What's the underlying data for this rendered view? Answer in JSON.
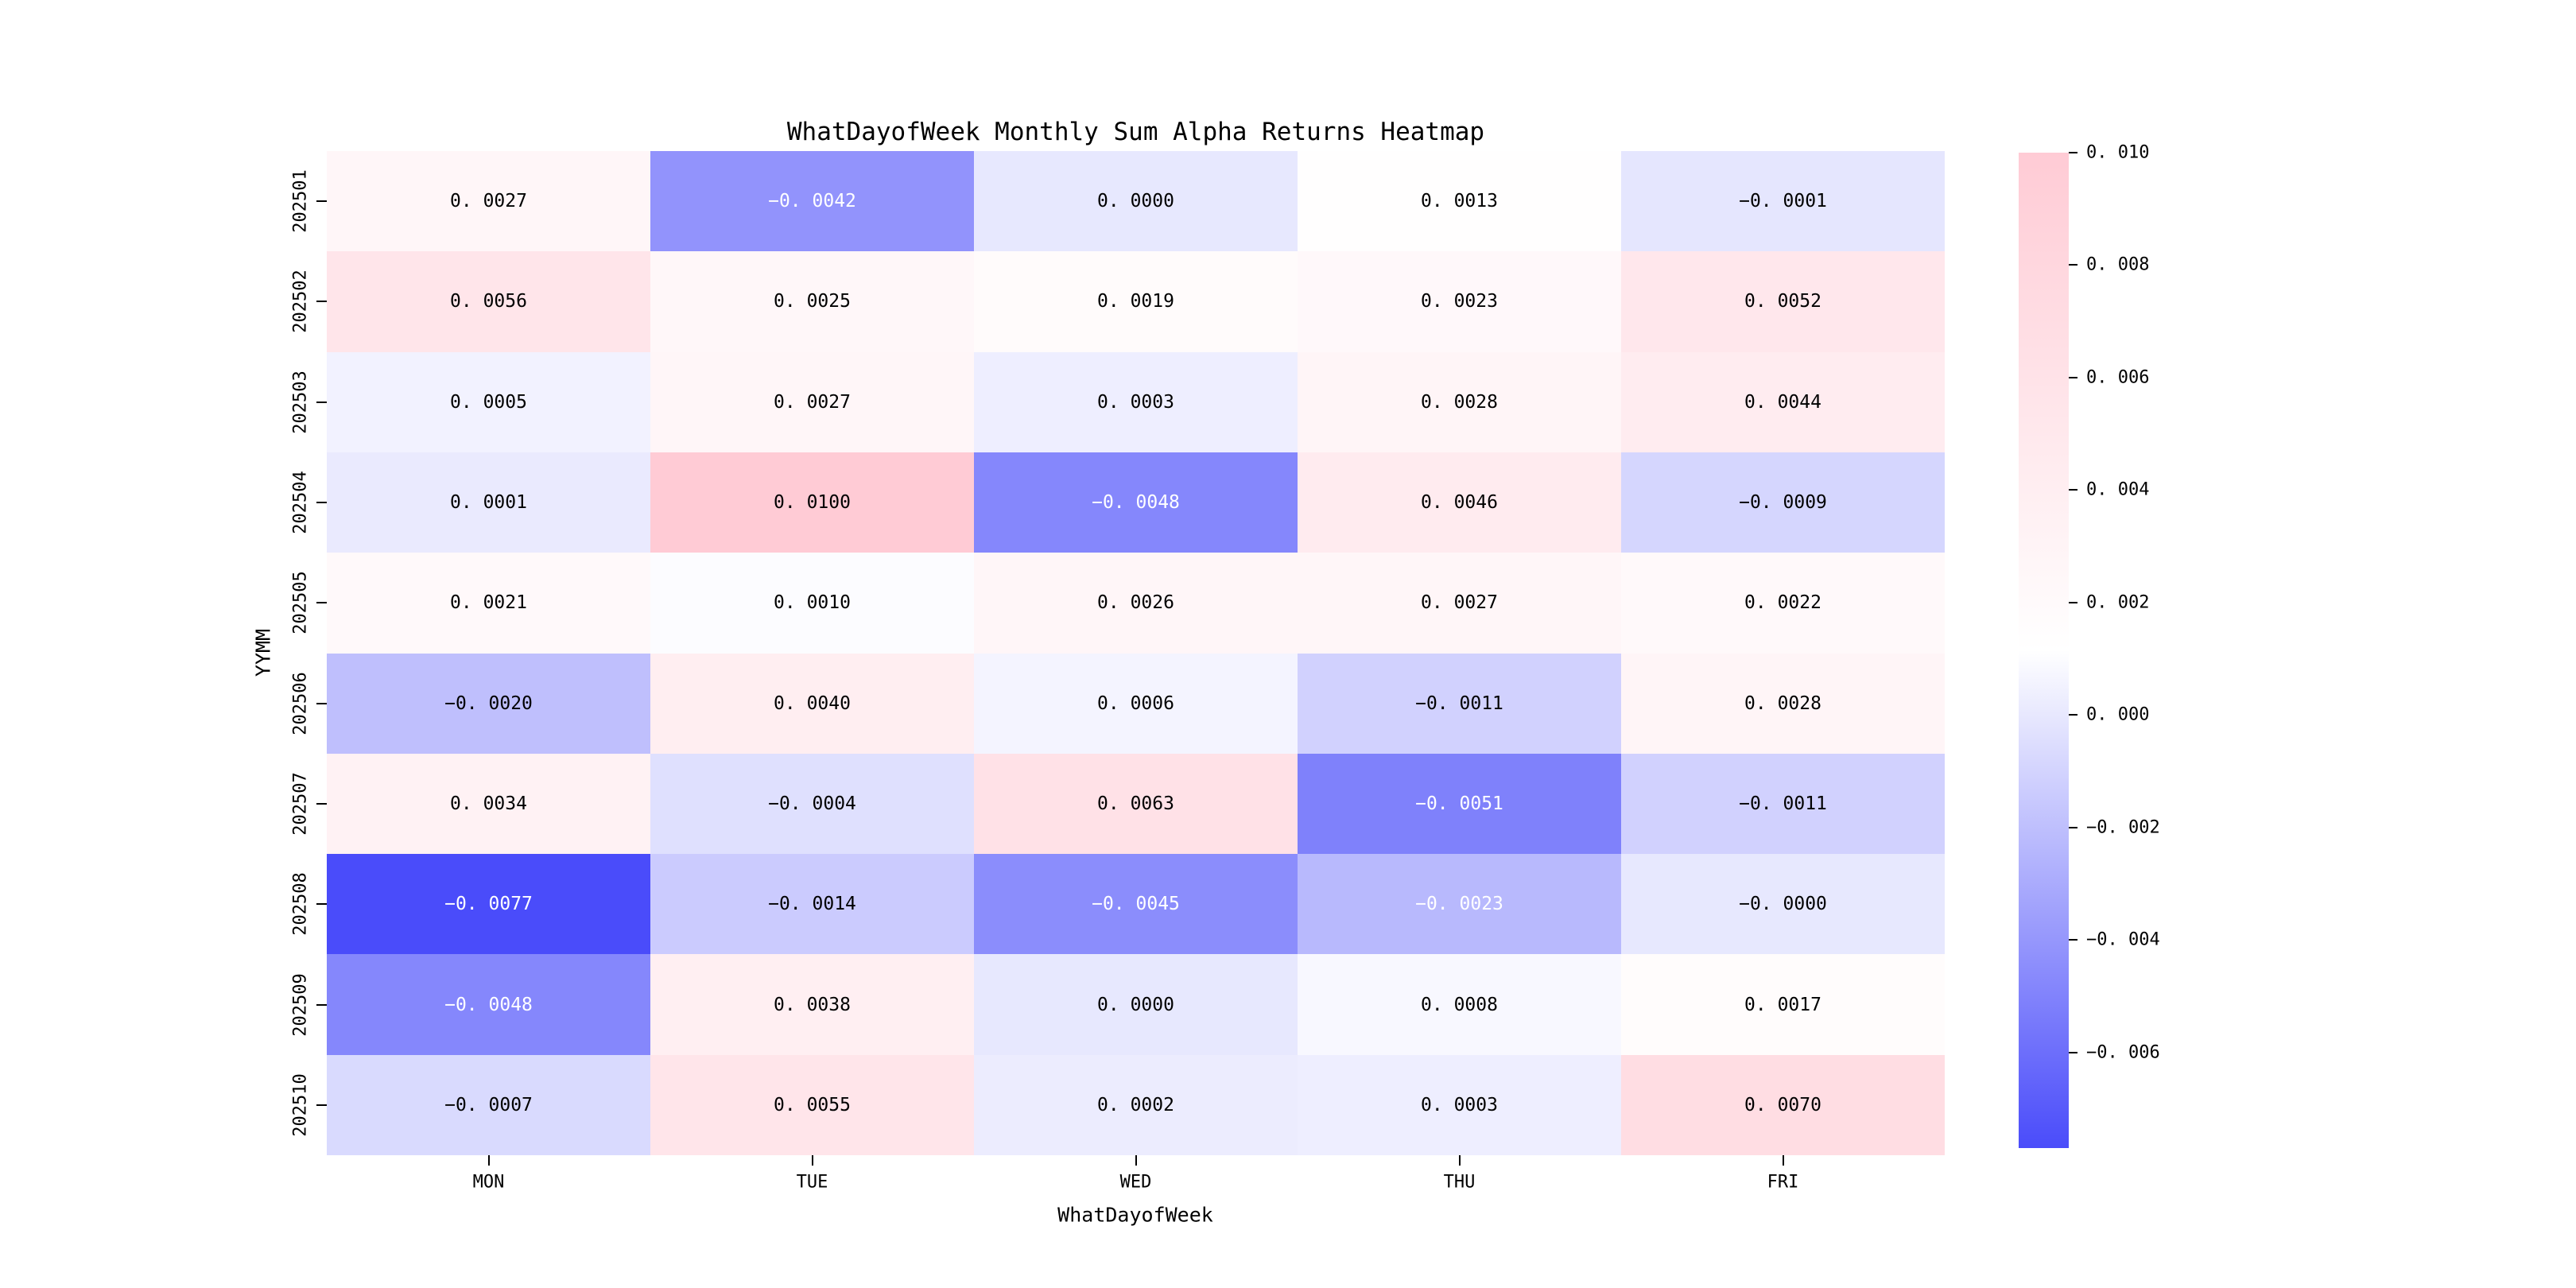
{
  "chart_data": {
    "type": "heatmap",
    "title": "WhatDayofWeek Monthly Sum Alpha Returns Heatmap",
    "xlabel": "WhatDayofWeek",
    "ylabel": "YYMM",
    "columns": [
      "MON",
      "TUE",
      "WED",
      "THU",
      "FRI"
    ],
    "rows": [
      "202501",
      "202502",
      "202503",
      "202504",
      "202505",
      "202506",
      "202507",
      "202508",
      "202509",
      "202510"
    ],
    "values": [
      [
        "0.0027",
        "-0.0042",
        "0.0000",
        "0.0013",
        "-0.0001"
      ],
      [
        "0.0056",
        "0.0025",
        "0.0019",
        "0.0023",
        "0.0052"
      ],
      [
        "0.0005",
        "0.0027",
        "0.0003",
        "0.0028",
        "0.0044"
      ],
      [
        "0.0001",
        "0.0100",
        "-0.0048",
        "0.0046",
        "-0.0009"
      ],
      [
        "0.0021",
        "0.0010",
        "0.0026",
        "0.0027",
        "0.0022"
      ],
      [
        "-0.0020",
        "0.0040",
        "0.0006",
        "-0.0011",
        "0.0028"
      ],
      [
        "0.0034",
        "-0.0004",
        "0.0063",
        "-0.0051",
        "-0.0011"
      ],
      [
        "-0.0077",
        "-0.0014",
        "-0.0045",
        "-0.0023",
        "-0.0000"
      ],
      [
        "-0.0048",
        "0.0038",
        "0.0000",
        "0.0008",
        "0.0017"
      ],
      [
        "-0.0007",
        "0.0055",
        "0.0002",
        "0.0003",
        "0.0070"
      ]
    ],
    "vmin": -0.0077,
    "vmax": 0.01,
    "white_text_threshold": -0.0022,
    "colorbar_ticks": [
      "0.010",
      "0.008",
      "0.006",
      "0.004",
      "0.002",
      "0.000",
      "-0.002",
      "-0.004",
      "-0.006"
    ],
    "colorbar_tick_values": [
      0.01,
      0.008,
      0.006,
      0.004,
      0.002,
      0.0,
      -0.002,
      -0.004,
      -0.006
    ],
    "colors": {
      "low": "#4a4cfa",
      "mid": "#ffffff",
      "high": "#ffcbd5",
      "text_dark": "#000000",
      "text_light": "#ffffff",
      "background": "#ffffff"
    },
    "legend_position": "right",
    "grid": false
  }
}
